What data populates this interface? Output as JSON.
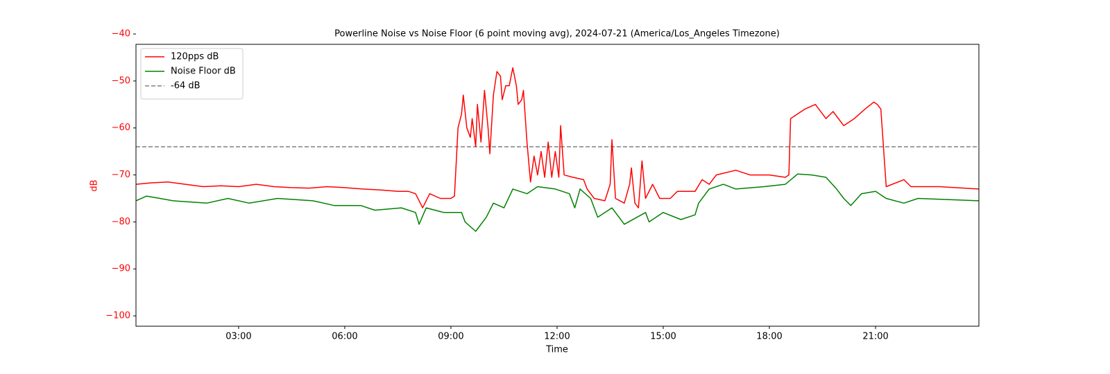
{
  "chart_data": {
    "type": "line",
    "title": "Powerline Noise vs Noise Floor (6 point moving avg), 2024-07-21 (America/Los_Angeles Timezone)",
    "xlabel": "Time",
    "ylabel": "dB",
    "ylabel_color": "#ff0000",
    "ytick_color": "#ff0000",
    "xlim": [
      0.1,
      23.92
    ],
    "ylim": [
      -102.2,
      -42.2
    ],
    "xticks": [
      {
        "value": 3,
        "label": "03:00"
      },
      {
        "value": 6,
        "label": "06:00"
      },
      {
        "value": 9,
        "label": "09:00"
      },
      {
        "value": 12,
        "label": "12:00"
      },
      {
        "value": 15,
        "label": "15:00"
      },
      {
        "value": 18,
        "label": "18:00"
      },
      {
        "value": 21,
        "label": "21:00"
      }
    ],
    "yticks": [
      {
        "value": -100,
        "label": "−100"
      },
      {
        "value": -90,
        "label": "−90"
      },
      {
        "value": -80,
        "label": "−80"
      },
      {
        "value": -70,
        "label": "−70"
      },
      {
        "value": -60,
        "label": "−60"
      },
      {
        "value": -50,
        "label": "−50"
      },
      {
        "value": -40,
        "label": "−40"
      }
    ],
    "legend": "upper left",
    "series": [
      {
        "name": "120pps dB",
        "color": "#ff0000",
        "x": [
          0.1,
          0.5,
          1,
          1.5,
          2,
          2.5,
          3,
          3.5,
          4,
          4.5,
          5,
          5.5,
          6,
          6.5,
          7,
          7.5,
          7.8,
          8.0,
          8.2,
          8.4,
          8.7,
          9.0,
          9.1,
          9.2,
          9.3,
          9.35,
          9.45,
          9.55,
          9.6,
          9.7,
          9.75,
          9.85,
          9.95,
          10.05,
          10.1,
          10.2,
          10.3,
          10.4,
          10.45,
          10.55,
          10.65,
          10.7,
          10.75,
          10.85,
          10.9,
          11.0,
          11.05,
          11.15,
          11.25,
          11.35,
          11.45,
          11.55,
          11.65,
          11.75,
          11.85,
          11.95,
          12.05,
          12.1,
          12.2,
          12.45,
          12.75,
          12.85,
          13.05,
          13.35,
          13.5,
          13.55,
          13.65,
          13.9,
          14.05,
          14.1,
          14.2,
          14.3,
          14.4,
          14.45,
          14.5,
          14.7,
          14.9,
          15.2,
          15.4,
          15.9,
          16.1,
          16.3,
          16.5,
          17.05,
          17.45,
          18.0,
          18.45,
          18.55,
          18.6,
          19.0,
          19.3,
          19.6,
          19.8,
          20.1,
          20.4,
          20.7,
          20.95,
          21.05,
          21.15,
          21.3,
          21.8,
          22.0,
          22.8,
          23.92
        ],
        "values": [
          -72,
          -71.7,
          -71.5,
          -72,
          -72.5,
          -72.3,
          -72.5,
          -72,
          -72.5,
          -72.7,
          -72.8,
          -72.5,
          -72.7,
          -73,
          -73.2,
          -73.5,
          -73.5,
          -74,
          -77,
          -74,
          -75,
          -75,
          -74.5,
          -60,
          -57,
          -53,
          -60,
          -62,
          -58,
          -64,
          -55,
          -63,
          -52,
          -60,
          -65.5,
          -53,
          -48,
          -49,
          -54,
          -51,
          -51,
          -49,
          -47.2,
          -51,
          -55,
          -54,
          -52,
          -63,
          -71.5,
          -66,
          -70,
          -65,
          -70.5,
          -63,
          -70.5,
          -65,
          -70.5,
          -59.5,
          -70,
          -70.5,
          -71,
          -73,
          -75,
          -75.5,
          -72,
          -62.5,
          -75,
          -76,
          -72,
          -68.5,
          -76,
          -77,
          -67,
          -71,
          -75,
          -72,
          -75,
          -75,
          -73.5,
          -73.5,
          -71,
          -72,
          -70,
          -69,
          -70,
          -70,
          -70.5,
          -70,
          -58,
          -56,
          -55,
          -58,
          -56.5,
          -59.5,
          -58,
          -56,
          -54.5,
          -55,
          -56,
          -72.5,
          -71,
          -72.5,
          -72.5,
          -73
        ]
      },
      {
        "name": "Noise Floor dB",
        "color": "#008000",
        "x": [
          0.1,
          0.4,
          1.15,
          2.1,
          2.7,
          3.3,
          4.1,
          5.1,
          5.7,
          6.45,
          6.85,
          7.6,
          8.0,
          8.1,
          8.3,
          8.8,
          9.3,
          9.4,
          9.7,
          10.0,
          10.2,
          10.5,
          10.75,
          11.15,
          11.45,
          11.95,
          12.35,
          12.5,
          12.65,
          12.95,
          13.15,
          13.55,
          13.9,
          14.5,
          14.6,
          15.0,
          15.5,
          15.9,
          16.0,
          16.3,
          16.7,
          17.05,
          17.85,
          18.45,
          18.8,
          19.2,
          19.6,
          19.9,
          20.1,
          20.3,
          20.6,
          21.0,
          21.3,
          21.8,
          22.2,
          23.92
        ],
        "values": [
          -75.5,
          -74.5,
          -75.5,
          -76,
          -75,
          -76,
          -75,
          -75.5,
          -76.5,
          -76.5,
          -77.5,
          -77,
          -78,
          -80.5,
          -77,
          -78,
          -78,
          -80,
          -82,
          -79,
          -76,
          -77,
          -73,
          -74,
          -72.5,
          -73,
          -74,
          -77,
          -73,
          -75,
          -79,
          -77,
          -80.5,
          -78,
          -80,
          -78,
          -79.5,
          -78.5,
          -76,
          -73,
          -72,
          -73,
          -72.5,
          -72,
          -69.8,
          -70,
          -70.5,
          -73,
          -75,
          -76.5,
          -74,
          -73.5,
          -75,
          -76,
          -75,
          -75.5
        ]
      }
    ],
    "reference_lines": [
      {
        "name": "-64 dB",
        "y": -64,
        "color": "#808080",
        "dashed": true
      }
    ]
  }
}
